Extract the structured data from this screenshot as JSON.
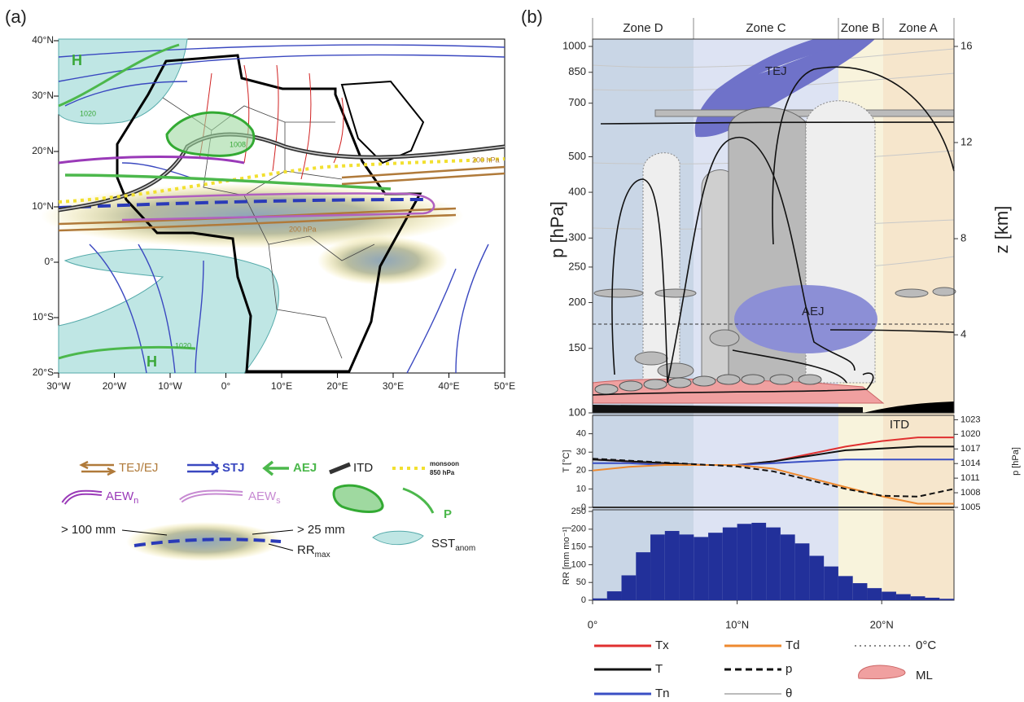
{
  "panel_a": {
    "label": "(a)",
    "lat_labels": [
      "40°N",
      "30°N",
      "20°N",
      "10°N",
      "0°",
      "10°S",
      "20°S"
    ],
    "lon_labels": [
      "30°W",
      "20°W",
      "10°W",
      "0°",
      "10°E",
      "20°E",
      "30°E",
      "40°E",
      "50°E"
    ],
    "annotations": [
      "H",
      "H",
      "1020",
      "1020",
      "1008",
      "200 hPa",
      "200 hPa"
    ],
    "legend": {
      "tej": "TEJ/EJ",
      "stj": "STJ",
      "aej": "AEJ",
      "itd": "ITD",
      "monsoon": "monsoon",
      "monsoon_level": "850 hPa",
      "aew": "AEW",
      "aew_n": "n",
      "aew_s": "s",
      "p": "P",
      "rr100": "> 100 mm",
      "rr25": "> 25 mm",
      "rr": "RR",
      "rr_sub": "max",
      "sst": "SST",
      "sst_sub": "anom"
    }
  },
  "panel_b": {
    "label": "(b)",
    "zones": [
      "Zone D",
      "Zone C",
      "Zone B",
      "Zone A"
    ],
    "tej": "TEJ",
    "aej": "AEJ",
    "itd": "ITD"
  },
  "chart_data": [
    {
      "type": "section",
      "y_label": "p [hPa]",
      "y2_label": "z [km]",
      "ylim": [
        100,
        1000
      ],
      "y_log": true,
      "yticks": [
        100,
        150,
        200,
        250,
        300,
        400,
        500,
        700,
        850,
        1000
      ],
      "y2lim": [
        0.75,
        16
      ],
      "y2ticks": [
        4,
        8,
        12,
        16
      ],
      "legend_extra": [
        "θ",
        "0°C",
        "ML"
      ]
    },
    {
      "type": "line",
      "y_label": "T [°C]",
      "y2_label": "p [hPa]",
      "x": [
        0,
        2.5,
        5,
        7.5,
        10,
        12.5,
        15,
        17.5,
        20,
        22.5,
        25
      ],
      "xlim": [
        0,
        25
      ],
      "ylim": [
        0,
        50
      ],
      "yticks": [
        0,
        10,
        20,
        30,
        40
      ],
      "y2lim": [
        1005,
        1023.9
      ],
      "y2ticks": [
        1005,
        1008,
        1011,
        1014,
        1017,
        1020,
        1023
      ],
      "series": [
        {
          "name": "Tx",
          "color": "#e03030",
          "values": [
            26,
            25,
            24,
            23,
            23,
            25,
            29,
            33,
            36,
            38,
            38
          ]
        },
        {
          "name": "T",
          "color": "#111111",
          "values": [
            26,
            25,
            24,
            23,
            23,
            25,
            28,
            31,
            32,
            33,
            33
          ]
        },
        {
          "name": "Tn",
          "color": "#3a4fc4",
          "values": [
            24,
            24,
            23,
            23,
            23,
            24,
            25,
            26,
            26,
            26,
            26
          ]
        },
        {
          "name": "Td",
          "color": "#ee8a30",
          "values": [
            20,
            22,
            23,
            23,
            23,
            21,
            16,
            11,
            6,
            2,
            2
          ]
        },
        {
          "name": "p",
          "color": "#111111",
          "dashed": true,
          "axis": "y2",
          "values": [
            1015,
            1014.6,
            1014.2,
            1013.8,
            1013.4,
            1012.4,
            1010.6,
            1008.8,
            1007.4,
            1007.2,
            1008.8
          ]
        }
      ]
    },
    {
      "type": "histogram",
      "y_label": "RR [mm mo⁻¹]",
      "color": "#22309a",
      "bins": [
        0,
        1,
        2,
        3,
        4,
        5,
        6,
        7,
        8,
        9,
        10,
        11,
        12,
        13,
        14,
        15,
        16,
        17,
        18,
        19,
        20,
        21,
        22,
        23,
        24,
        25
      ],
      "values": [
        5,
        25,
        70,
        135,
        185,
        195,
        185,
        178,
        190,
        205,
        215,
        218,
        205,
        185,
        160,
        125,
        95,
        68,
        48,
        34,
        24,
        17,
        11,
        7,
        4
      ],
      "xlim": [
        0,
        25
      ],
      "ylim": [
        0,
        250
      ],
      "yticks": [
        0,
        50,
        100,
        150,
        200,
        250
      ],
      "xticks": [
        {
          "value": 0,
          "label": "0°"
        },
        {
          "value": 10,
          "label": "10°N"
        },
        {
          "value": 20,
          "label": "20°N"
        }
      ]
    }
  ]
}
